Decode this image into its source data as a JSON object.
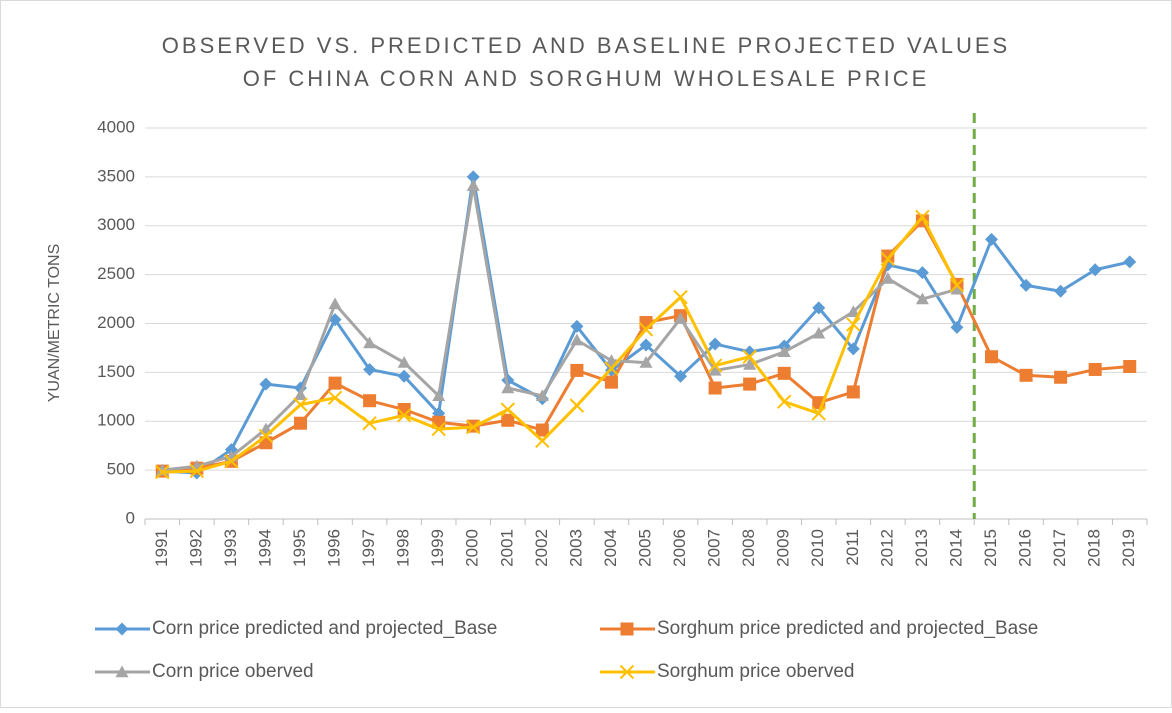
{
  "chart_data": {
    "type": "line",
    "title": [
      "OBSERVED VS. PREDICTED AND BASELINE PROJECTED VALUES",
      "OF CHINA CORN AND SORGHUM WHOLESALE PRICE"
    ],
    "y_label": "YUAN/METRIC TONS",
    "categories": [
      "1991",
      "1992",
      "1993",
      "1994",
      "1995",
      "1996",
      "1997",
      "1998",
      "1999",
      "2000",
      "2001",
      "2002",
      "2003",
      "2004",
      "2005",
      "2006",
      "2007",
      "2008",
      "2009",
      "2010",
      "2011",
      "2012",
      "2013",
      "2014",
      "2015",
      "2016",
      "2017",
      "2018",
      "2019"
    ],
    "ylim": [
      0,
      4000
    ],
    "yticks": [
      0,
      500,
      1000,
      1500,
      2000,
      2500,
      3000,
      3500,
      4000
    ],
    "grid": true,
    "legend": "bottom",
    "vline": {
      "after": "2014",
      "color": "#70ad47",
      "dashed": true
    },
    "series": [
      {
        "name": "Corn price predicted and projected_Base",
        "color": "#5b9bd5",
        "marker": "diamond",
        "values": [
          490,
          470,
          710,
          1380,
          1340,
          2040,
          1530,
          1460,
          1080,
          3500,
          1420,
          1230,
          1970,
          1520,
          1780,
          1460,
          1790,
          1710,
          1770,
          2160,
          1740,
          2600,
          2520,
          1960,
          2860,
          2390,
          2330,
          2550,
          2630
        ]
      },
      {
        "name": "Sorghum price predicted and projected_Base",
        "color": "#ed7d31",
        "marker": "square",
        "values": [
          490,
          520,
          590,
          780,
          980,
          1390,
          1210,
          1120,
          990,
          950,
          1010,
          910,
          1520,
          1400,
          2010,
          2080,
          1340,
          1380,
          1490,
          1190,
          1300,
          2690,
          3050,
          2400,
          1660,
          1470,
          1450,
          1530,
          1560
        ]
      },
      {
        "name": "Corn price oberved",
        "color": "#a5a5a5",
        "marker": "triangle",
        "values": [
          500,
          540,
          640,
          920,
          1270,
          2200,
          1800,
          1600,
          1260,
          3410,
          1340,
          1260,
          1830,
          1620,
          1600,
          2050,
          1520,
          1580,
          1710,
          1900,
          2120,
          2460,
          2250,
          2350,
          null,
          null,
          null,
          null,
          null
        ]
      },
      {
        "name": "Sorghum price oberved",
        "color": "#ffc000",
        "marker": "x",
        "values": [
          480,
          490,
          590,
          850,
          1170,
          1240,
          980,
          1060,
          920,
          940,
          1120,
          800,
          1160,
          1540,
          1940,
          2270,
          1570,
          1660,
          1200,
          1080,
          1990,
          2660,
          3090,
          2390,
          null,
          null,
          null,
          null,
          null
        ]
      }
    ]
  }
}
